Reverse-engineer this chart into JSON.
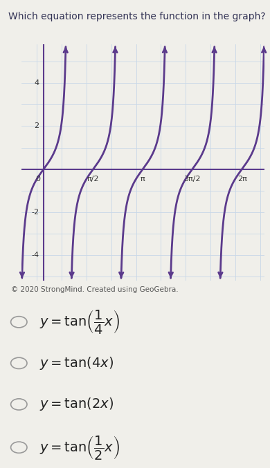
{
  "title": "Which equation represents the function in the graph?",
  "copyright": "© 2020 StrongMind. Created using GeoGebra.",
  "curve_color": "#5B3A8C",
  "axis_color": "#5B3A8C",
  "grid_color": "#C8D8E8",
  "bg_color": "#F0EFEA",
  "xmin": -0.7,
  "xmax": 7.0,
  "ymin": -5.2,
  "ymax": 5.8,
  "ytick_vals": [
    -4,
    -2,
    2,
    4
  ],
  "xtick_vals": [
    0.0,
    1.5707963,
    3.1415927,
    4.712389,
    6.2831853
  ],
  "xtick_labels": [
    "0",
    "π/2",
    "π",
    "3π/2",
    "2π"
  ],
  "b_coeff": 2,
  "choices_latex": [
    "$y = \\tan\\!\\left(\\dfrac{1}{4}x\\right)$",
    "$y = \\tan(4x)$",
    "$y = \\tan(2x)$",
    "$y = \\tan\\!\\left(\\dfrac{1}{2}x\\right)$"
  ],
  "figsize": [
    3.9,
    6.77
  ],
  "dpi": 100
}
